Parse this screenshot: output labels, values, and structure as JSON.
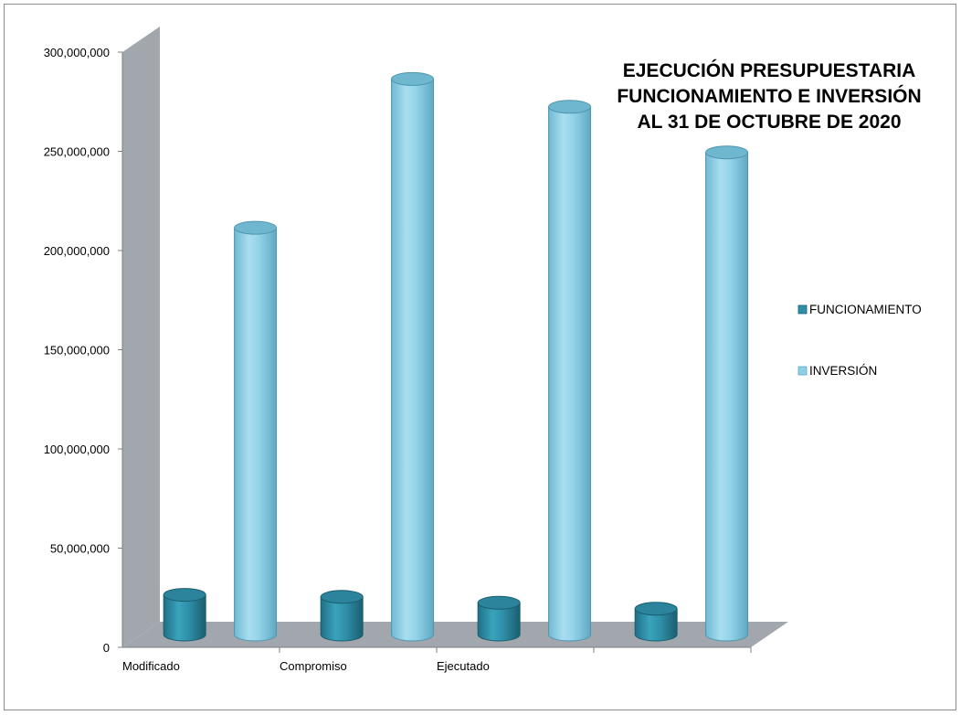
{
  "chart_data": {
    "type": "bar",
    "style": "3d-cylinder",
    "title_lines": [
      "EJECUCIÓN PRESUPUESTARIA",
      "FUNCIONAMIENTO E INVERSIÓN",
      "AL 31 DE OCTUBRE DE 2020"
    ],
    "categories": [
      "Modificado",
      "Compromiso",
      "Ejecutado",
      ""
    ],
    "series": [
      {
        "name": "FUNCIONAMIENTO",
        "color": "#2e8fa8",
        "values": [
          20000000,
          19000000,
          16000000,
          13000000
        ]
      },
      {
        "name": "INVERSIÓN",
        "color": "#8ecfe6",
        "values": [
          205000000,
          280000000,
          266000000,
          243000000
        ]
      }
    ],
    "ylim": [
      0,
      300000000
    ],
    "yticks": [
      0,
      50000000,
      100000000,
      150000000,
      200000000,
      250000000,
      300000000
    ],
    "ytick_labels": [
      "0",
      "50,000,000",
      "100,000,000",
      "150,000,000",
      "200,000,000",
      "250,000,000",
      "300,000,000"
    ],
    "legend_position": "right",
    "grid": false,
    "wall_color": "#a2a7ad",
    "floor_color": "#a2a7ad"
  }
}
